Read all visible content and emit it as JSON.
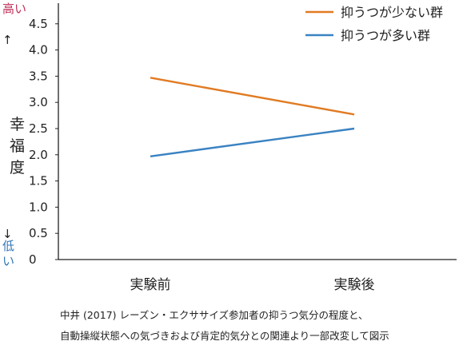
{
  "chart_data": {
    "type": "line",
    "categories": [
      "実験前",
      "実験後"
    ],
    "series": [
      {
        "name": "抑うつが少ない群",
        "values": [
          3.47,
          2.77
        ],
        "color": "#e07b22"
      },
      {
        "name": "抑うつが多い群",
        "values": [
          1.97,
          2.5
        ],
        "color": "#3a82c2"
      }
    ],
    "ylim": [
      0,
      4.8
    ],
    "yticks": [
      {
        "v": 0,
        "label": "0"
      },
      {
        "v": 0.5,
        "label": "0.5"
      },
      {
        "v": 1.0,
        "label": "1.0"
      },
      {
        "v": 1.5,
        "label": "1.5"
      },
      {
        "v": 2.0,
        "label": "2.0"
      },
      {
        "v": 2.5,
        "label": "2.5"
      },
      {
        "v": 3.0,
        "label": "3.0"
      },
      {
        "v": 3.5,
        "label": "3.5"
      },
      {
        "v": 4.0,
        "label": "4.0"
      },
      {
        "v": 4.5,
        "label": "4.5"
      }
    ],
    "ylabel": "幸福度",
    "ylabel_high": "高い",
    "ylabel_low": "低い",
    "arrow_up": "↑",
    "arrow_down": "↓",
    "legend_position": "top-right",
    "grid": false
  },
  "caption": {
    "line1": "中井 (2017) レーズン・エクササイズ参加者の抑うつ気分の程度と、",
    "line2": "自動操縦状態への気づきおよび肯定的気分との関連より一部改変して図示"
  }
}
